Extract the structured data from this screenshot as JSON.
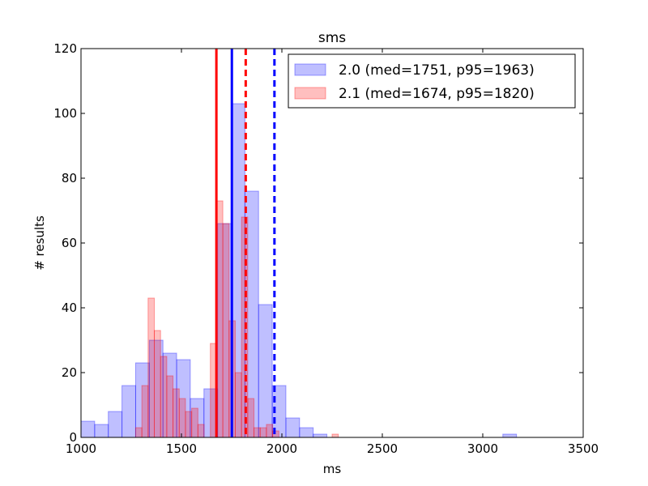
{
  "chart_data": {
    "type": "histogram",
    "title": "sms",
    "xlabel": "ms",
    "ylabel": "# results",
    "xlim": [
      1000,
      3500
    ],
    "ylim": [
      0,
      120
    ],
    "xticks": [
      1000,
      1500,
      2000,
      2500,
      3000,
      3500
    ],
    "yticks": [
      0,
      20,
      40,
      60,
      80,
      100,
      120
    ],
    "legend_position": "top-right",
    "series": [
      {
        "name": "2.0 (med=1751, p95=1963)",
        "color": "#0000ff",
        "median": 1751,
        "p95": 1963,
        "bins": [
          [
            1000,
            1068,
            5
          ],
          [
            1068,
            1136,
            4
          ],
          [
            1136,
            1204,
            8
          ],
          [
            1204,
            1272,
            16
          ],
          [
            1272,
            1340,
            23
          ],
          [
            1340,
            1408,
            30
          ],
          [
            1408,
            1476,
            26
          ],
          [
            1476,
            1544,
            24
          ],
          [
            1544,
            1612,
            12
          ],
          [
            1612,
            1680,
            15
          ],
          [
            1680,
            1748,
            66
          ],
          [
            1748,
            1816,
            103
          ],
          [
            1816,
            1884,
            76
          ],
          [
            1884,
            1952,
            41
          ],
          [
            1952,
            2020,
            16
          ],
          [
            2020,
            2088,
            6
          ],
          [
            2088,
            2156,
            3
          ],
          [
            2156,
            2224,
            1
          ],
          [
            3100,
            3168,
            1
          ]
        ]
      },
      {
        "name": "2.1 (med=1674, p95=1820)",
        "color": "#ff0000",
        "median": 1674,
        "p95": 1820,
        "bins": [
          [
            1272,
            1303,
            3
          ],
          [
            1303,
            1334,
            16
          ],
          [
            1334,
            1365,
            43
          ],
          [
            1365,
            1396,
            33
          ],
          [
            1396,
            1427,
            25
          ],
          [
            1427,
            1458,
            19
          ],
          [
            1458,
            1489,
            15
          ],
          [
            1489,
            1520,
            12
          ],
          [
            1520,
            1551,
            8
          ],
          [
            1551,
            1582,
            9
          ],
          [
            1582,
            1613,
            4
          ],
          [
            1613,
            1644,
            0
          ],
          [
            1644,
            1675,
            29
          ],
          [
            1675,
            1706,
            73
          ],
          [
            1706,
            1737,
            66
          ],
          [
            1737,
            1768,
            36
          ],
          [
            1768,
            1799,
            20
          ],
          [
            1799,
            1830,
            68
          ],
          [
            1830,
            1861,
            12
          ],
          [
            1861,
            1892,
            3
          ],
          [
            1892,
            1923,
            3
          ],
          [
            1923,
            1954,
            4
          ],
          [
            1954,
            1985,
            2
          ],
          [
            2250,
            2281,
            1
          ]
        ]
      }
    ]
  }
}
